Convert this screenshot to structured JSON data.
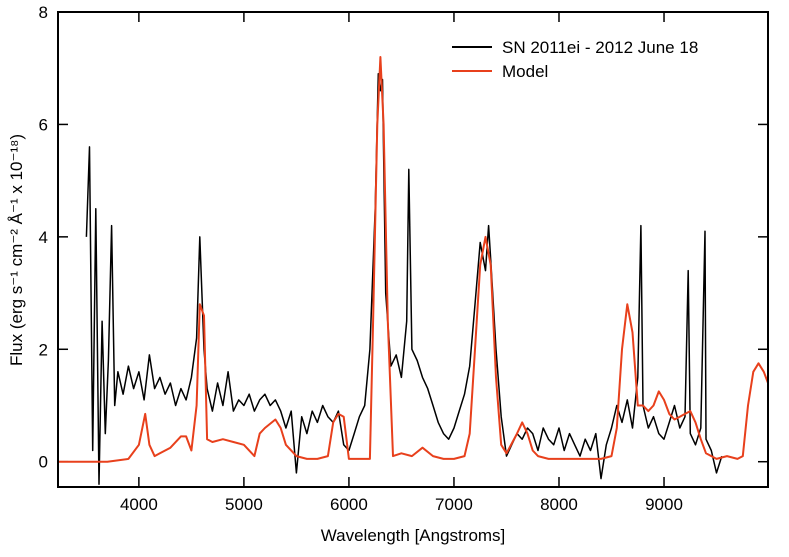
{
  "chart_data": {
    "type": "line",
    "xlabel": "Wavelength [Angstroms]",
    "ylabel": "Flux (erg s⁻¹ cm⁻² Å⁻¹ x 10⁻¹⁸)",
    "xlim": [
      3230,
      9990
    ],
    "ylim": [
      -0.45,
      8
    ],
    "xticks": [
      4000,
      5000,
      6000,
      7000,
      8000,
      9000
    ],
    "yticks": [
      0,
      2,
      4,
      6,
      8
    ],
    "legend": "upper right",
    "series": [
      {
        "name": "SN 2011ei - 2012 June 18",
        "color": "#000000",
        "x": [
          3500,
          3530,
          3560,
          3590,
          3620,
          3650,
          3680,
          3710,
          3740,
          3770,
          3800,
          3850,
          3900,
          3950,
          4000,
          4050,
          4100,
          4150,
          4200,
          4250,
          4300,
          4350,
          4400,
          4450,
          4500,
          4550,
          4580,
          4600,
          4620,
          4650,
          4700,
          4750,
          4800,
          4850,
          4900,
          4950,
          5000,
          5050,
          5100,
          5150,
          5200,
          5250,
          5300,
          5350,
          5400,
          5450,
          5500,
          5550,
          5600,
          5650,
          5700,
          5750,
          5800,
          5850,
          5900,
          5950,
          6000,
          6050,
          6100,
          6150,
          6200,
          6250,
          6280,
          6300,
          6320,
          6350,
          6400,
          6450,
          6500,
          6550,
          6570,
          6600,
          6650,
          6700,
          6750,
          6800,
          6850,
          6900,
          6950,
          7000,
          7050,
          7100,
          7150,
          7200,
          7250,
          7300,
          7330,
          7350,
          7400,
          7450,
          7500,
          7550,
          7600,
          7650,
          7700,
          7750,
          7800,
          7850,
          7900,
          7950,
          8000,
          8050,
          8100,
          8150,
          8200,
          8250,
          8300,
          8350,
          8400,
          8450,
          8500,
          8550,
          8600,
          8650,
          8700,
          8750,
          8780,
          8800,
          8850,
          8900,
          8950,
          9000,
          9050,
          9100,
          9150,
          9200,
          9230,
          9250,
          9300,
          9350,
          9390,
          9400,
          9450,
          9500,
          9550
        ],
        "values": [
          4.0,
          5.6,
          0.2,
          4.5,
          -0.4,
          2.5,
          0.5,
          1.8,
          4.2,
          1.0,
          1.6,
          1.2,
          1.7,
          1.3,
          1.6,
          1.1,
          1.9,
          1.3,
          1.5,
          1.2,
          1.4,
          1.0,
          1.3,
          1.1,
          1.5,
          2.2,
          4.0,
          3.0,
          2.0,
          1.3,
          0.9,
          1.4,
          1.0,
          1.6,
          0.9,
          1.1,
          1.0,
          1.2,
          0.9,
          1.1,
          1.2,
          1.0,
          1.1,
          0.9,
          0.6,
          0.9,
          -0.2,
          0.8,
          0.5,
          0.9,
          0.7,
          1.0,
          0.8,
          0.7,
          0.9,
          0.3,
          0.2,
          0.5,
          0.8,
          1.0,
          2.0,
          4.5,
          6.9,
          6.6,
          6.8,
          3.0,
          1.7,
          1.9,
          1.5,
          2.5,
          5.2,
          2.0,
          1.8,
          1.5,
          1.3,
          1.0,
          0.7,
          0.5,
          0.4,
          0.6,
          0.9,
          1.2,
          1.7,
          2.8,
          3.9,
          3.4,
          4.2,
          3.6,
          2.0,
          0.8,
          0.1,
          0.3,
          0.5,
          0.4,
          0.6,
          0.5,
          0.2,
          0.6,
          0.4,
          0.3,
          0.6,
          0.2,
          0.5,
          0.3,
          0.1,
          0.4,
          0.2,
          0.5,
          -0.3,
          0.3,
          0.6,
          1.0,
          0.7,
          1.1,
          0.6,
          1.5,
          4.2,
          1.0,
          0.6,
          0.8,
          0.5,
          0.4,
          0.7,
          1.0,
          0.6,
          0.8,
          3.4,
          0.5,
          0.3,
          0.6,
          4.1,
          0.4,
          0.2,
          -0.2,
          0.1
        ]
      },
      {
        "name": "Model",
        "color": "#e8401c",
        "x": [
          3230,
          3500,
          3700,
          3900,
          4000,
          4060,
          4100,
          4150,
          4200,
          4300,
          4400,
          4450,
          4500,
          4550,
          4580,
          4620,
          4650,
          4700,
          4800,
          4900,
          5000,
          5100,
          5150,
          5200,
          5300,
          5350,
          5400,
          5500,
          5600,
          5700,
          5800,
          5850,
          5900,
          5950,
          6000,
          6200,
          6230,
          6270,
          6300,
          6330,
          6370,
          6420,
          6500,
          6600,
          6700,
          6800,
          6900,
          7000,
          7100,
          7150,
          7200,
          7250,
          7300,
          7350,
          7400,
          7450,
          7500,
          7600,
          7650,
          7700,
          7750,
          7800,
          7900,
          8000,
          8100,
          8200,
          8300,
          8400,
          8500,
          8550,
          8600,
          8650,
          8700,
          8750,
          8800,
          8850,
          8900,
          8950,
          9000,
          9050,
          9100,
          9150,
          9200,
          9250,
          9300,
          9350,
          9400,
          9500,
          9600,
          9700,
          9750,
          9800,
          9850,
          9900,
          9950,
          9990
        ],
        "values": [
          0.0,
          0.0,
          0.0,
          0.05,
          0.3,
          0.85,
          0.3,
          0.1,
          0.15,
          0.25,
          0.45,
          0.45,
          0.2,
          1.0,
          2.8,
          2.6,
          0.4,
          0.35,
          0.4,
          0.35,
          0.3,
          0.1,
          0.5,
          0.6,
          0.75,
          0.6,
          0.3,
          0.1,
          0.05,
          0.05,
          0.1,
          0.7,
          0.85,
          0.8,
          0.05,
          0.05,
          2.5,
          6.0,
          7.2,
          6.0,
          2.5,
          0.1,
          0.15,
          0.1,
          0.25,
          0.1,
          0.05,
          0.05,
          0.1,
          0.5,
          2.0,
          3.5,
          4.0,
          3.5,
          1.5,
          0.3,
          0.15,
          0.5,
          0.7,
          0.5,
          0.2,
          0.1,
          0.05,
          0.05,
          0.05,
          0.05,
          0.05,
          0.05,
          0.1,
          0.6,
          2.0,
          2.8,
          2.3,
          1.0,
          1.0,
          0.9,
          1.0,
          1.25,
          1.1,
          0.85,
          0.75,
          0.8,
          0.85,
          0.9,
          0.7,
          0.4,
          0.15,
          0.05,
          0.1,
          0.05,
          0.1,
          1.0,
          1.6,
          1.75,
          1.6,
          1.4
        ]
      }
    ]
  }
}
